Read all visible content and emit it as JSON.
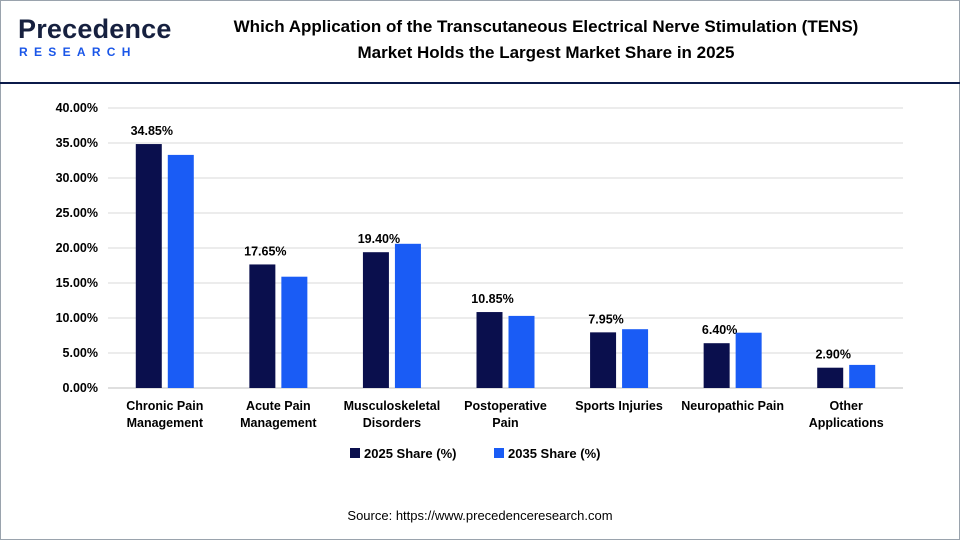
{
  "brand": {
    "logo_top": "Precedence",
    "logo_bottom": "RESEARCH"
  },
  "colors": {
    "series_2025": "#0a0f4d",
    "series_2035": "#1a5cf5",
    "grid": "#d9d9d9",
    "header_rule": "#0b1a4a"
  },
  "chart_data": {
    "type": "bar",
    "title_line1": "Which Application of the Transcutaneous Electrical Nerve Stimulation (TENS)",
    "title_line2": "Market Holds the Largest Market Share in 2025",
    "categories": [
      [
        "Chronic Pain",
        "Management"
      ],
      [
        "Acute Pain",
        "Management"
      ],
      [
        "Musculoskeletal",
        "Disorders"
      ],
      [
        "Postoperative",
        "Pain"
      ],
      [
        "Sports Injuries"
      ],
      [
        "Neuropathic Pain"
      ],
      [
        "Other",
        "Applications"
      ]
    ],
    "series": [
      {
        "name": "2025 Share (%)",
        "values": [
          34.85,
          17.65,
          19.4,
          10.85,
          7.95,
          6.4,
          2.9
        ],
        "data_labels": [
          "34.85%",
          "17.65%",
          "19.40%",
          "10.85%",
          "7.95%",
          "6.40%",
          "2.90%"
        ]
      },
      {
        "name": "2035 Share (%)",
        "values": [
          33.3,
          15.9,
          20.6,
          10.3,
          8.4,
          7.9,
          3.3
        ]
      }
    ],
    "y_ticks": [
      "0.00%",
      "5.00%",
      "10.00%",
      "15.00%",
      "20.00%",
      "25.00%",
      "30.00%",
      "35.00%",
      "40.00%"
    ],
    "ylim": [
      0,
      40
    ],
    "grid": true,
    "legend_position": "bottom"
  },
  "source": "Source: https://www.precedenceresearch.com"
}
